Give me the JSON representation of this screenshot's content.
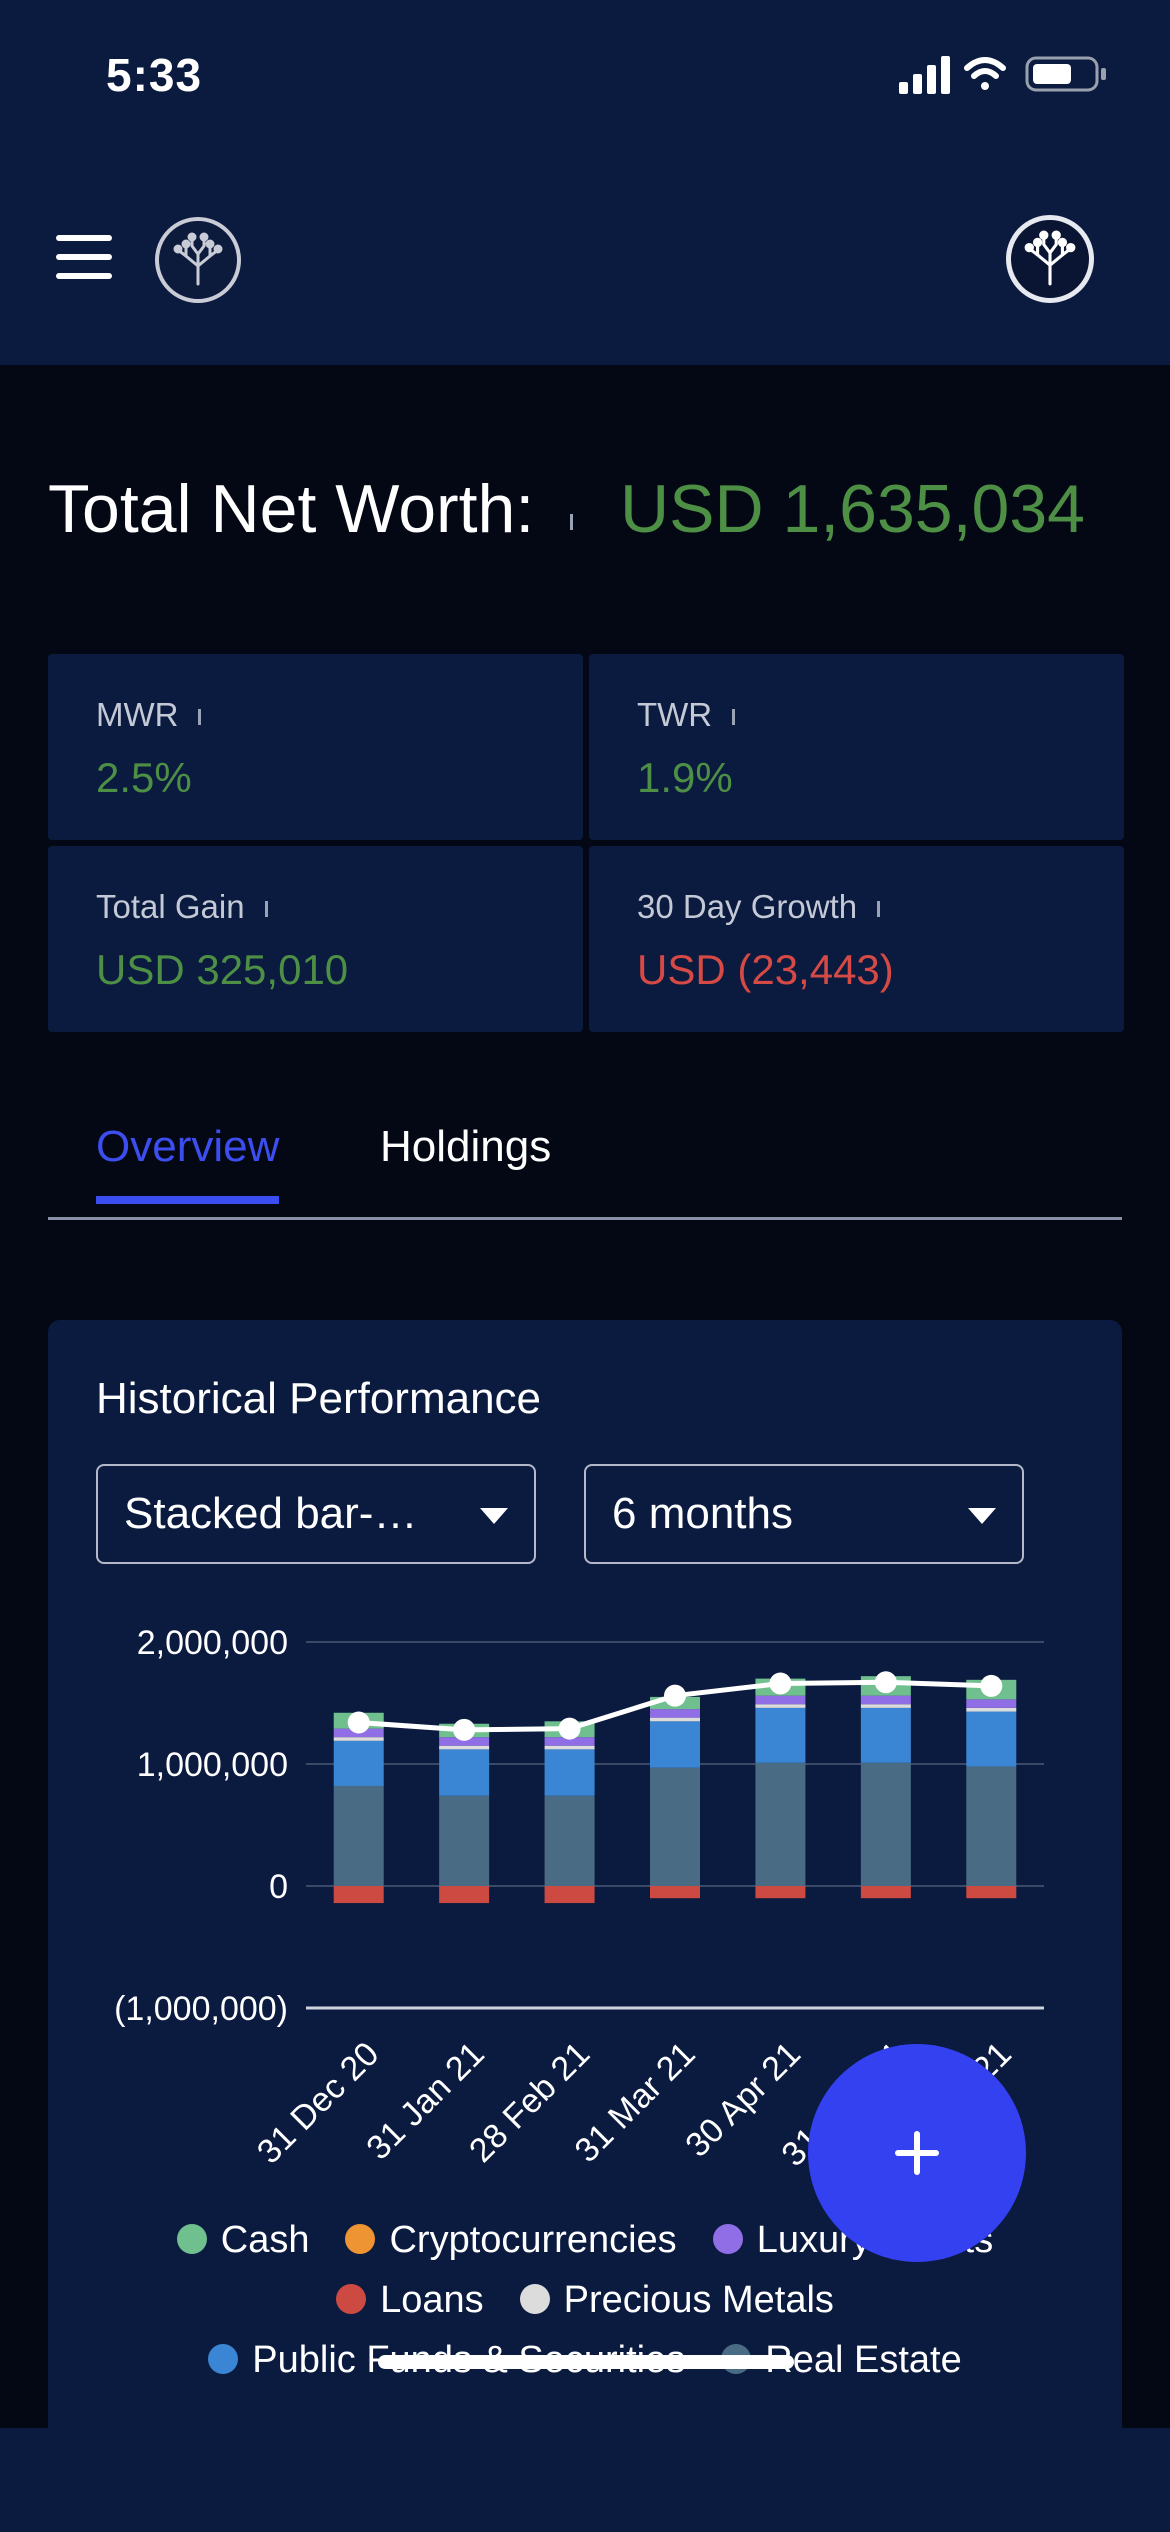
{
  "status_bar": {
    "time": "5:33",
    "signal_icon": "cellular-signal-icon",
    "wifi_icon": "wifi-icon",
    "battery_icon": "battery-icon"
  },
  "header": {
    "menu_icon": "hamburger-menu-icon",
    "logo_icon": "tree-logo-icon",
    "profile_icon": "profile-logo-icon"
  },
  "net_worth": {
    "label": "Total Net Worth:",
    "value": "USD 1,635,034"
  },
  "stats": {
    "mwr": {
      "label": "MWR",
      "value": "2.5%"
    },
    "twr": {
      "label": "TWR",
      "value": "1.9%"
    },
    "total_gain": {
      "label": "Total Gain",
      "value": "USD 325,010"
    },
    "growth_30d": {
      "label": "30 Day Growth",
      "value": "USD (23,443)"
    }
  },
  "tabs": {
    "overview": "Overview",
    "holdings": "Holdings",
    "active": "overview"
  },
  "performance": {
    "title": "Historical Performance",
    "chart_type_select": "Stacked bar-…",
    "range_select": "6 months"
  },
  "chart_data": {
    "type": "bar",
    "stacked": true,
    "categories": [
      "31 Dec 20",
      "31 Jan 21",
      "28 Feb 21",
      "31 Mar 21",
      "30 Apr 21",
      "31 May 21",
      "30 Jun 21"
    ],
    "category_labels_visible": [
      "31 Dec 20",
      "31 Jan 21",
      "28 Feb 21",
      "31 Mar 21",
      "30 Apr 21",
      "31 May 21",
      "21"
    ],
    "yticks": [
      "2,000,000",
      "1,000,000",
      "0",
      "(1,000,000)"
    ],
    "ytick_values": [
      2000000,
      1000000,
      0,
      -1000000
    ],
    "ylim": [
      -1000000,
      2000000
    ],
    "grid": true,
    "series": [
      {
        "name": "Loans",
        "color": "#cc4a42",
        "values": [
          -140000,
          -140000,
          -140000,
          -100000,
          -100000,
          -100000,
          -100000
        ]
      },
      {
        "name": "Real Estate",
        "color": "#4a6b84",
        "values": [
          820000,
          740000,
          740000,
          970000,
          1010000,
          1010000,
          980000
        ]
      },
      {
        "name": "Public Funds & Securities",
        "color": "#3b86d4",
        "values": [
          370000,
          380000,
          380000,
          380000,
          450000,
          450000,
          450000
        ]
      },
      {
        "name": "Precious Metals",
        "color": "#dcdcdc",
        "values": [
          30000,
          30000,
          30000,
          30000,
          30000,
          30000,
          30000
        ]
      },
      {
        "name": "Luxury Assets",
        "color": "#8f6ee6",
        "values": [
          70000,
          70000,
          70000,
          70000,
          70000,
          70000,
          70000
        ]
      },
      {
        "name": "Cryptocurrencies",
        "color": "#ee9432",
        "values": [
          0,
          0,
          0,
          0,
          0,
          0,
          0
        ]
      },
      {
        "name": "Cash",
        "color": "#6fbf8f",
        "values": [
          130000,
          110000,
          130000,
          100000,
          140000,
          160000,
          160000
        ]
      }
    ],
    "net_line": {
      "color": "#ffffff",
      "values": [
        1340000,
        1280000,
        1290000,
        1560000,
        1660000,
        1670000,
        1640000
      ]
    },
    "legend": {
      "placement": "bottom",
      "rows": [
        [
          "Cash",
          "Cryptocurrencies",
          "Luxury Assets"
        ],
        [
          "Loans",
          "Precious Metals"
        ],
        [
          "Public Funds & Securities",
          "Real Estate"
        ]
      ]
    }
  },
  "fab": {
    "icon": "plus-icon"
  }
}
